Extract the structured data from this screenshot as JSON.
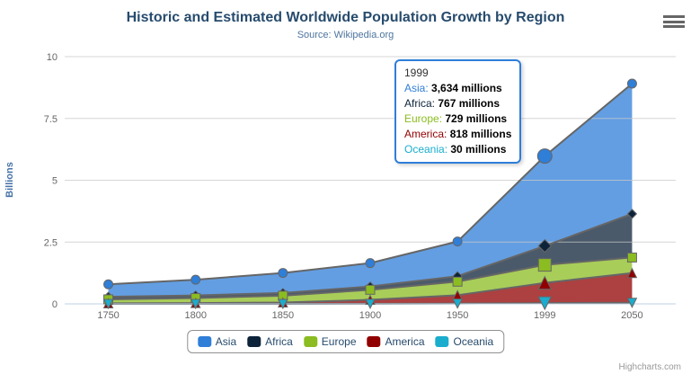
{
  "chart_data": {
    "type": "area",
    "stacking": "normal",
    "title": "Historic and Estimated Worldwide Population Growth by Region",
    "subtitle": "Source: Wikipedia.org",
    "categories": [
      "1750",
      "1800",
      "1850",
      "1900",
      "1950",
      "1999",
      "2050"
    ],
    "xlabel": "",
    "ylabel": "Billions",
    "ylim": [
      0,
      10
    ],
    "yticks": [
      0,
      2.5,
      5,
      7.5,
      10
    ],
    "grid": true,
    "legend_position": "bottom",
    "value_unit": "millions",
    "hover_category_index": 5,
    "series": [
      {
        "name": "Asia",
        "color": "#2f7ed8",
        "marker": "circle",
        "values_millions": [
          502,
          635,
          809,
          947,
          1402,
          3634,
          5268
        ]
      },
      {
        "name": "Africa",
        "color": "#0d233a",
        "marker": "diamond",
        "values_millions": [
          106,
          107,
          111,
          133,
          221,
          767,
          1766
        ]
      },
      {
        "name": "Europe",
        "color": "#8bbc21",
        "marker": "square",
        "values_millions": [
          163,
          203,
          276,
          408,
          547,
          729,
          628
        ]
      },
      {
        "name": "America",
        "color": "#910000",
        "marker": "triangle",
        "values_millions": [
          18,
          31,
          54,
          156,
          339,
          818,
          1201
        ]
      },
      {
        "name": "Oceania",
        "color": "#1aadce",
        "marker": "triangle-down",
        "values_millions": [
          2,
          2,
          2,
          6,
          13,
          30,
          46
        ]
      }
    ]
  },
  "tooltip": {
    "header": "1999",
    "border_color": "#2f7ed8",
    "rows": [
      {
        "label": "Asia",
        "value": "3,634 millions",
        "color": "#2f7ed8"
      },
      {
        "label": "Africa",
        "value": "767 millions",
        "color": "#0d233a"
      },
      {
        "label": "Europe",
        "value": "729 millions",
        "color": "#8bbc21"
      },
      {
        "label": "America",
        "value": "818 millions",
        "color": "#910000"
      },
      {
        "label": "Oceania",
        "value": "30 millions",
        "color": "#1aadce"
      }
    ]
  },
  "credits": {
    "label": "Highcharts.com"
  },
  "icons": {
    "context_menu": "hamburger-icon"
  },
  "colors": {
    "background": "#ffffff",
    "title": "#274b6d",
    "subtitle": "#4d759e",
    "axis_label": "#666666",
    "y_axis_title": "#4572a7",
    "gridline": "#c8c8c8",
    "axis_line": "#c0d0e0",
    "series_outline": "#666666",
    "legend_border": "#909090",
    "legend_text": "#274b6d",
    "credits": "#999999",
    "menu_icon": "#666666"
  }
}
